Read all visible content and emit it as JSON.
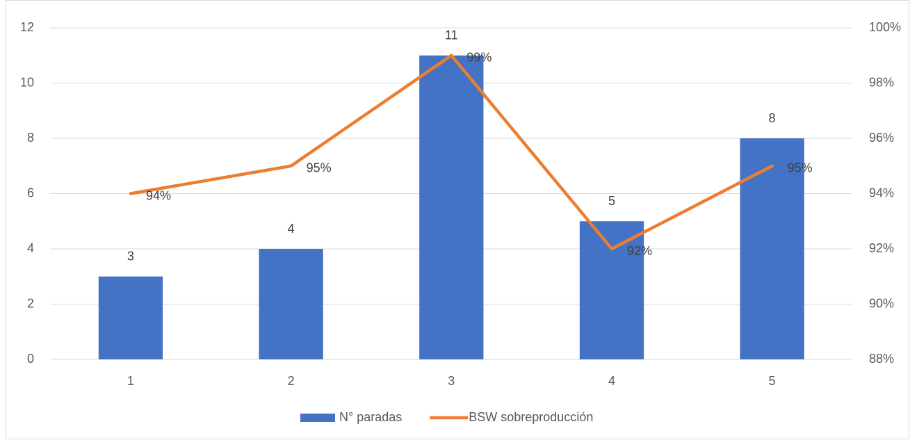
{
  "chart_data": {
    "type": "bar",
    "categories": [
      "1",
      "2",
      "3",
      "4",
      "5"
    ],
    "series": [
      {
        "name": "N° paradas",
        "type": "bar",
        "color": "#4472c4",
        "values": [
          3,
          4,
          11,
          5,
          8
        ]
      },
      {
        "name": "BSW sobreproducción",
        "type": "line",
        "axis": "y2",
        "color": "#ed7d31",
        "values": [
          94,
          95,
          99,
          92,
          95
        ],
        "value_labels": [
          "94%",
          "95%",
          "99%",
          "92%",
          "95%"
        ]
      }
    ],
    "ylim": [
      0,
      12
    ],
    "yticks": [
      0,
      2,
      4,
      6,
      8,
      10,
      12
    ],
    "y2lim": [
      88,
      100
    ],
    "y2ticks": [
      {
        "value": 88,
        "label": "88%"
      },
      {
        "value": 90,
        "label": "90%"
      },
      {
        "value": 92,
        "label": "92%"
      },
      {
        "value": 94,
        "label": "94%"
      },
      {
        "value": 96,
        "label": "96%"
      },
      {
        "value": 98,
        "label": "98%"
      },
      {
        "value": 100,
        "label": "100%"
      }
    ],
    "grid": true,
    "legend": "bottom"
  }
}
